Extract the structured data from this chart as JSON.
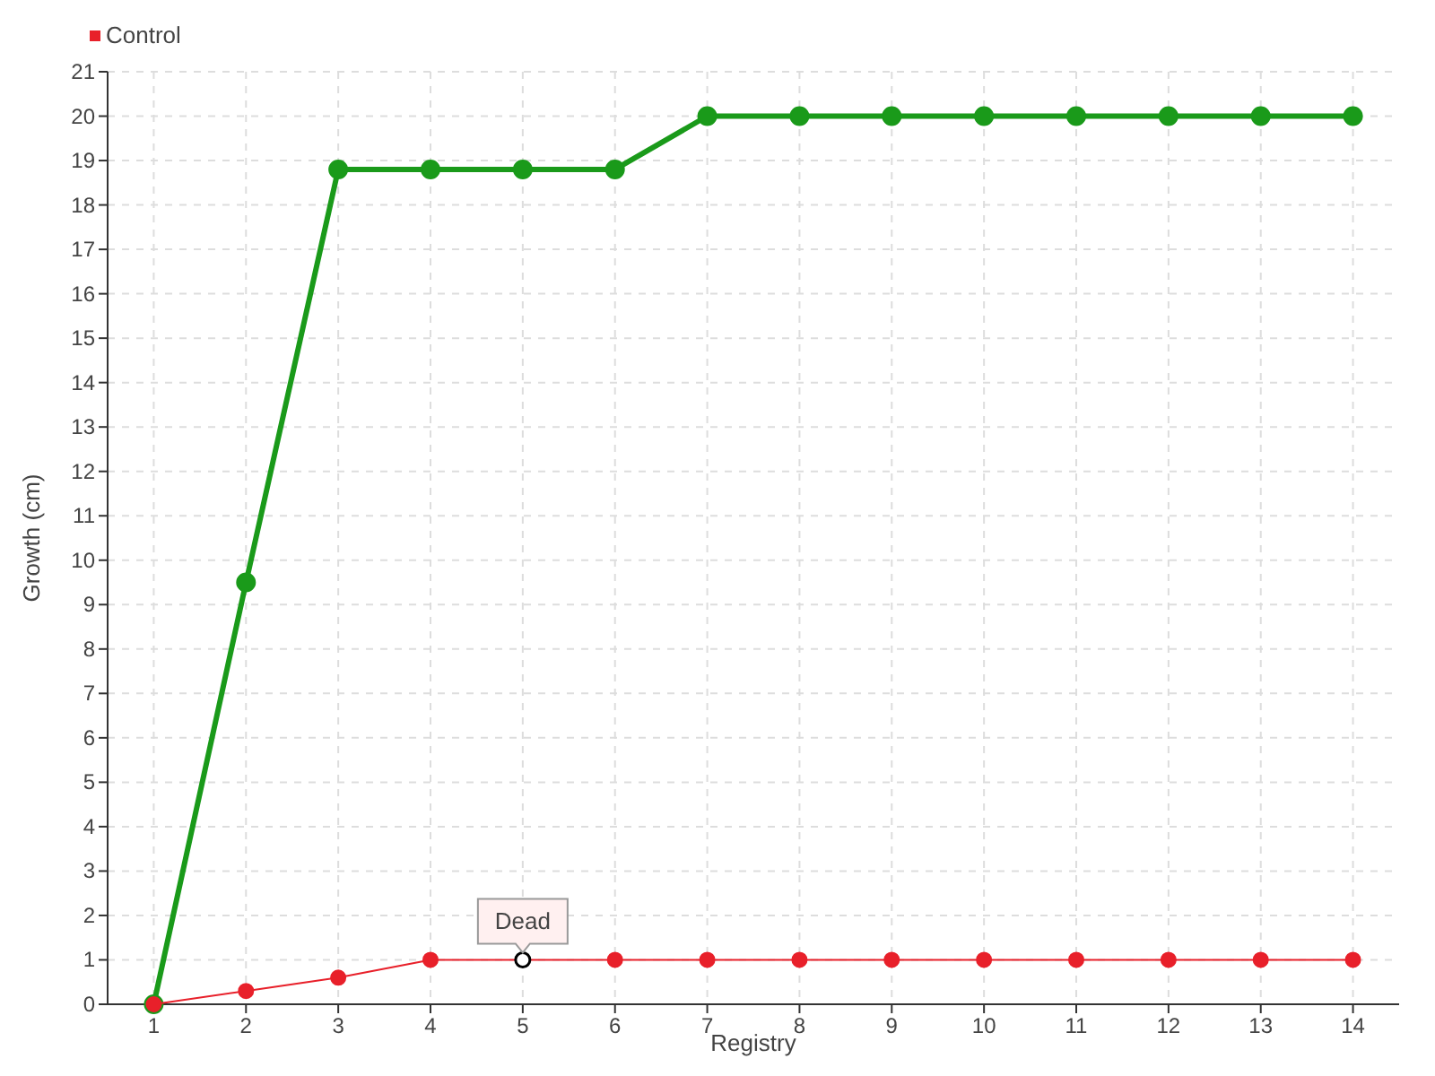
{
  "chart_data": {
    "type": "line",
    "xlabel": "Registry",
    "ylabel": "Growth (cm)",
    "x": [
      1,
      2,
      3,
      4,
      5,
      6,
      7,
      8,
      9,
      10,
      11,
      12,
      13,
      14
    ],
    "series": [
      {
        "color": "#1a9a1a",
        "values": [
          0,
          9.5,
          18.8,
          18.8,
          18.8,
          18.8,
          20,
          20,
          20,
          20,
          20,
          20,
          20,
          20
        ]
      },
      {
        "name": "Control",
        "color": "#e8202a",
        "values": [
          0,
          0.3,
          0.6,
          1,
          1,
          1,
          1,
          1,
          1,
          1,
          1,
          1,
          1,
          1
        ]
      }
    ],
    "xlim": [
      0.5,
      14.5
    ],
    "xticks": [
      1,
      2,
      3,
      4,
      5,
      6,
      7,
      8,
      9,
      10,
      11,
      12,
      13,
      14
    ],
    "ylim": [
      0,
      21
    ],
    "yticks": [
      0,
      1,
      2,
      3,
      4,
      5,
      6,
      7,
      8,
      9,
      10,
      11,
      12,
      13,
      14,
      15,
      16,
      17,
      18,
      19,
      20,
      21
    ],
    "grid": true,
    "legend": "top left",
    "marker": "circle",
    "line_style": "solid",
    "annotations": [
      {
        "text": "Dead",
        "x": 5,
        "y": 1
      }
    ]
  }
}
